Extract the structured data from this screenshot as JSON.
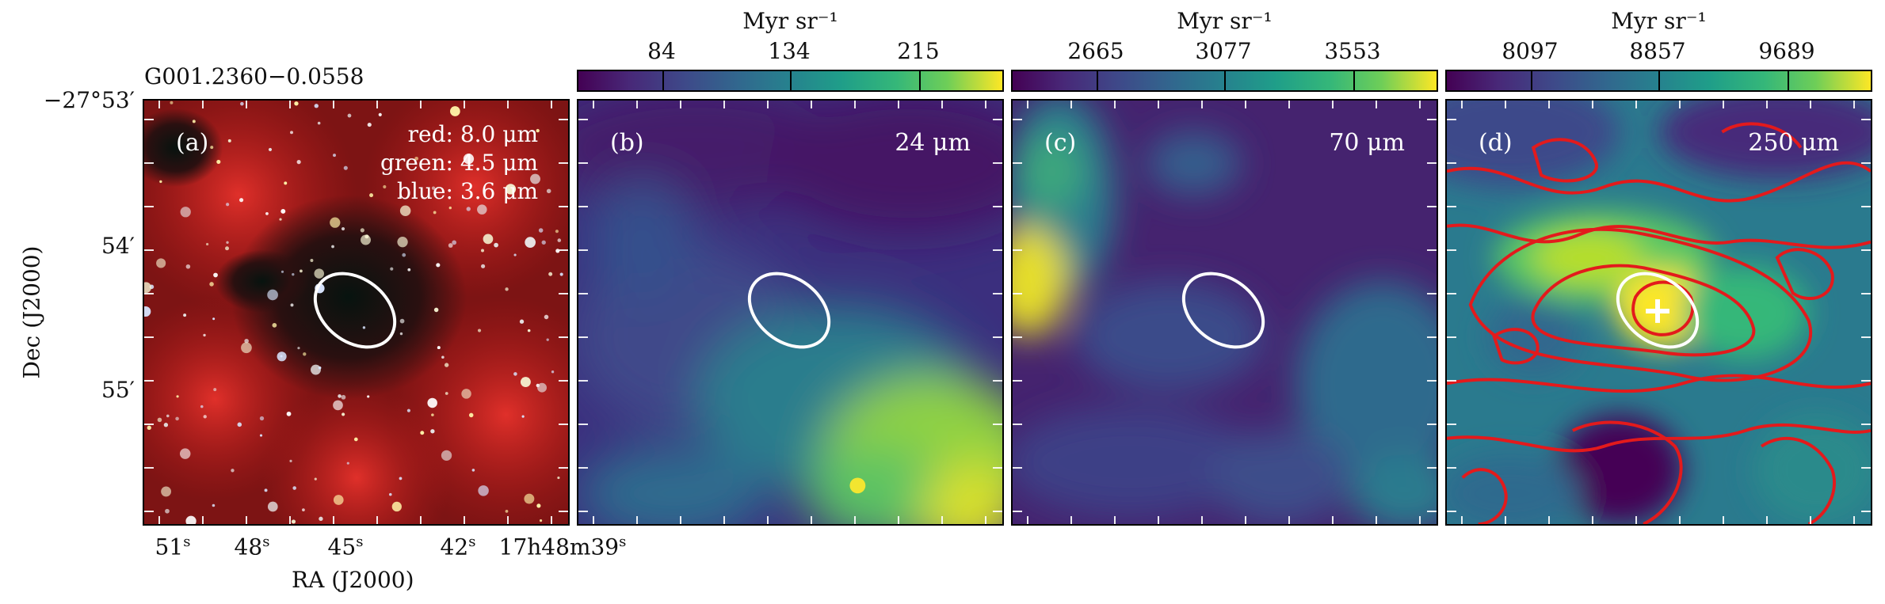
{
  "source_name": "G001.2360−0.0558",
  "axes": {
    "ylabel": "Dec (J2000)",
    "xlabel": "RA (J2000)",
    "yticks": [
      "−27°53′",
      "54′",
      "55′"
    ],
    "xticks": [
      {
        "value": "51",
        "unit": "s"
      },
      {
        "value": "48",
        "unit": "s"
      },
      {
        "value": "45",
        "unit": "s"
      },
      {
        "value": "42",
        "unit": "s"
      },
      {
        "value": "17h48m39",
        "unit": "s"
      }
    ]
  },
  "panels": [
    {
      "label": "(a)",
      "channels": [
        "red: 8.0 μm",
        "green: 4.5 μm",
        "blue: 3.6 μm"
      ]
    },
    {
      "label": "(b)",
      "band": "24 μm",
      "colorbar": {
        "unit": "Myr sr⁻¹",
        "ticks": [
          "84",
          "134",
          "215"
        ]
      }
    },
    {
      "label": "(c)",
      "band": "70 μm",
      "colorbar": {
        "unit": "Myr sr⁻¹",
        "ticks": [
          "2665",
          "3077",
          "3553"
        ]
      }
    },
    {
      "label": "(d)",
      "band": "250 μm",
      "colorbar": {
        "unit": "Myr sr⁻¹",
        "ticks": [
          "8097",
          "8857",
          "9689"
        ]
      }
    }
  ],
  "colors": {
    "ellipse": "#ffffff",
    "contour": "#e31a1c",
    "marker": "#ffffff",
    "colormap": "viridis"
  }
}
